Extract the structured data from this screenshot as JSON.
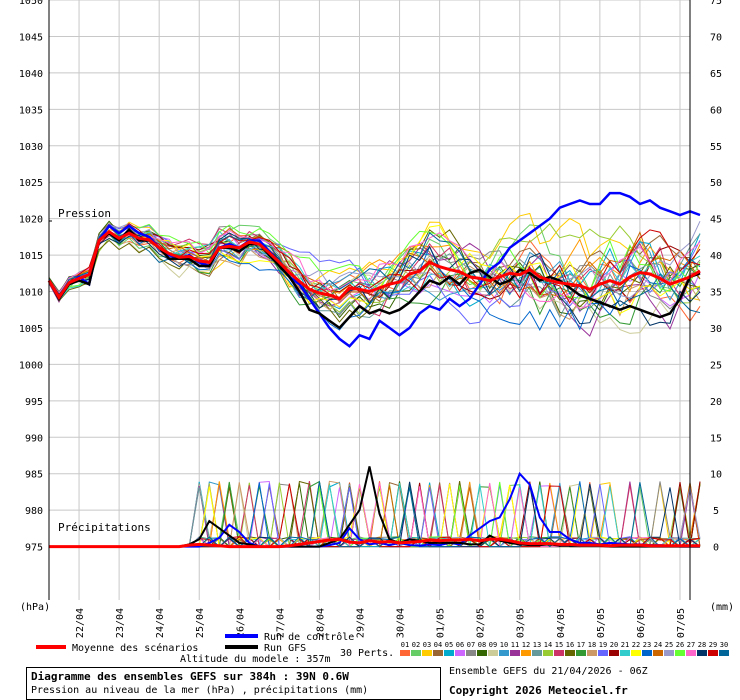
{
  "chart_data": {
    "type": "line",
    "title": "Diagramme des ensembles GEFS sur 384h : 39N 0.6W",
    "subtitle": "Pression au niveau de la mer (hPa) , précipitations (mm)",
    "left_axis": {
      "unit": "(hPa)",
      "min": 970,
      "max": 1050,
      "ticks": [
        975,
        980,
        985,
        990,
        995,
        1000,
        1005,
        1010,
        1015,
        1020,
        1025,
        1030,
        1035,
        1040,
        1045,
        1050
      ]
    },
    "right_axis": {
      "unit": "(mm)",
      "min": 0,
      "max": 75,
      "ticks": [
        0,
        5,
        10,
        15,
        20,
        25,
        30,
        35,
        40,
        45,
        50,
        55,
        60,
        65,
        70,
        75
      ]
    },
    "x_tick_labels": [
      "22/04",
      "23/04",
      "24/04",
      "25/04",
      "26/04",
      "27/04",
      "28/04",
      "29/04",
      "30/04",
      "01/05",
      "02/05",
      "03/05",
      "04/05",
      "05/05",
      "06/05",
      "07/05"
    ],
    "x_ticks_hours": [
      18,
      42,
      66,
      90,
      114,
      138,
      162,
      186,
      210,
      234,
      258,
      282,
      306,
      330,
      354,
      378
    ],
    "x_range_hours": [
      0,
      384
    ],
    "step_hours": 6,
    "panel_labels": {
      "pressure": "Pression",
      "precip": "Précipitations"
    },
    "series": [
      {
        "name": "Moyenne des scénarios",
        "color": "#ff0000",
        "pressure": [
          1011.5,
          1009.2,
          1011.2,
          1011.8,
          1012.3,
          1017.0,
          1018.2,
          1017.3,
          1018.0,
          1017.3,
          1017.1,
          1016.0,
          1015.2,
          1014.7,
          1014.8,
          1014.2,
          1014.0,
          1016.0,
          1016.2,
          1016.0,
          1016.8,
          1016.5,
          1015.3,
          1014.0,
          1012.6,
          1011.4,
          1010.3,
          1009.8,
          1009.5,
          1009.0,
          1010.5,
          1010.3,
          1010.0,
          1010.5,
          1011.0,
          1011.3,
          1012.4,
          1012.8,
          1014.0,
          1013.4,
          1013.0,
          1012.7,
          1012.0,
          1011.8,
          1011.5,
          1012.0,
          1012.5,
          1012.3,
          1013.0,
          1012.0,
          1011.5,
          1011.2,
          1011.0,
          1010.8,
          1010.3,
          1011.0,
          1011.5,
          1011.0,
          1012.0,
          1012.6,
          1012.4,
          1011.8,
          1011.0,
          1011.5,
          1012.0,
          1012.8
        ],
        "precip": [
          0,
          0,
          0,
          0,
          0,
          0,
          0,
          0,
          0,
          0,
          0,
          0,
          0,
          0,
          0.2,
          0.3,
          0.2,
          0.1,
          0,
          0,
          0,
          0,
          0,
          0,
          0.1,
          0.3,
          0.5,
          0.7,
          0.9,
          1.0,
          0.6,
          0.5,
          0.8,
          0.6,
          0.7,
          0.5,
          0.6,
          0.7,
          0.9,
          0.8,
          0.9,
          0.9,
          1.0,
          0.8,
          1.0,
          1.0,
          0.8,
          0.5,
          0.4,
          0.4,
          0.4,
          0.3,
          0.3,
          0.2,
          0.2,
          0.2,
          0.1,
          0.2,
          0.2,
          0.2,
          0.1,
          0.1,
          0.1,
          0.1,
          0.1,
          0.1
        ]
      },
      {
        "name": "Run de contrôle",
        "color": "#0000ff",
        "pressure": [
          1011.5,
          1009.0,
          1011.0,
          1012.0,
          1011.0,
          1017.0,
          1019.0,
          1018.0,
          1019.0,
          1018.0,
          1017.5,
          1016.0,
          1015.0,
          1014.5,
          1015.0,
          1014.0,
          1013.5,
          1016.0,
          1016.5,
          1016.0,
          1017.0,
          1017.0,
          1015.5,
          1014.0,
          1012.0,
          1011.0,
          1009.0,
          1007.0,
          1005.0,
          1003.5,
          1002.5,
          1004.0,
          1003.5,
          1006.0,
          1005.0,
          1004.0,
          1005.0,
          1007.0,
          1008.0,
          1007.5,
          1009.0,
          1008.0,
          1009.0,
          1011.0,
          1013.0,
          1014.0,
          1016.0,
          1017.0,
          1018.0,
          1019.0,
          1020.0,
          1021.5,
          1022.0,
          1022.5,
          1022.0,
          1022.0,
          1023.5,
          1023.5,
          1023.0,
          1022.0,
          1022.5,
          1021.5,
          1021.0,
          1020.5,
          1021.0,
          1020.5
        ],
        "precip": [
          0,
          0,
          0,
          0,
          0,
          0,
          0,
          0,
          0,
          0,
          0,
          0,
          0,
          0,
          0,
          0,
          0.5,
          1.2,
          3.0,
          2.0,
          0.5,
          0,
          0,
          0,
          0,
          0,
          0,
          0,
          0.2,
          0.5,
          2.5,
          1.0,
          0.3,
          0.5,
          0.2,
          0.5,
          0.2,
          0.1,
          0.3,
          0.2,
          0.5,
          0.3,
          1.5,
          2.5,
          3.5,
          4.0,
          6.5,
          10.0,
          8.5,
          4.0,
          2.0,
          2.0,
          1.0,
          0.5,
          0.5,
          0.3,
          0.5,
          0.4,
          0.3,
          0.3,
          0.2,
          0.2,
          0.1,
          0,
          0,
          0
        ]
      },
      {
        "name": "Run GFS",
        "color": "#000000",
        "pressure": [
          1011.5,
          1009.0,
          1011.0,
          1011.5,
          1011.0,
          1017.0,
          1018.0,
          1017.0,
          1018.5,
          1017.0,
          1017.0,
          1016.0,
          1014.5,
          1014.5,
          1014.5,
          1013.5,
          1013.5,
          1016.0,
          1016.0,
          1015.5,
          1016.5,
          1016.5,
          1015.0,
          1013.5,
          1012.0,
          1010.0,
          1007.5,
          1007.0,
          1006.0,
          1005.0,
          1006.5,
          1008.0,
          1007.0,
          1007.5,
          1007.0,
          1007.5,
          1008.5,
          1010.0,
          1011.5,
          1011.0,
          1012.0,
          1011.0,
          1012.5,
          1013.0,
          1012.0,
          1011.0,
          1011.5,
          1013.0,
          1012.5,
          1011.5,
          1012.0,
          1011.5,
          1010.5,
          1009.5,
          1009.0,
          1008.5,
          1008.0,
          1007.5,
          1008.0,
          1007.5,
          1007.0,
          1006.5,
          1007.0,
          1009.0,
          1012.0,
          1012.5
        ],
        "precip": [
          0,
          0,
          0,
          0,
          0,
          0,
          0,
          0,
          0,
          0,
          0,
          0,
          0,
          0,
          0.3,
          1.0,
          3.5,
          2.5,
          1.5,
          0.5,
          0.3,
          0,
          0,
          0,
          0,
          0,
          0,
          0,
          0.5,
          1.0,
          3.0,
          5.0,
          11.0,
          4.5,
          1.0,
          0.5,
          1.0,
          0.8,
          0.5,
          0.5,
          0.5,
          0.5,
          0.3,
          0.3,
          1.5,
          0.8,
          0.5,
          0.3,
          0.2,
          0.2,
          0.3,
          0.1,
          0.1,
          0.1,
          0.1,
          0.1,
          0,
          0,
          0,
          0,
          0,
          0,
          0,
          0,
          0,
          0
        ]
      }
    ],
    "perturbation_count": 30,
    "legend": {
      "mean": "Moyenne des scénarios",
      "control": "Run de contrôle",
      "gfs": "Run GFS",
      "perts": "30 Perts.",
      "perts_colors": [
        "#ff6633",
        "#66cc66",
        "#ffcc00",
        "#996633",
        "#00aacc",
        "#cc66ff",
        "#888888",
        "#336600",
        "#cccc99",
        "#3399cc",
        "#993399",
        "#ff9900",
        "#669999",
        "#99cc33",
        "#cc3366",
        "#666600",
        "#339933",
        "#cc9966",
        "#6666ff",
        "#990000",
        "#33cccc",
        "#ffff00",
        "#0066cc",
        "#cc6600",
        "#9999cc",
        "#66ff33",
        "#ff66cc",
        "#003366",
        "#cc0000",
        "#006699"
      ]
    },
    "grid": true,
    "legend_position": "bottom"
  },
  "info": {
    "altitude": "Altitude du modele : 357m",
    "diagram_title": "Diagramme des ensembles GEFS sur 384h : 39N 0.6W",
    "diagram_subtitle": "Pression au niveau de la mer (hPa) , précipitations (mm)",
    "ensemble_run": "Ensemble GEFS du 21/04/2026 - 06Z",
    "copyright": "Copyright 2026 Meteociel.fr"
  }
}
